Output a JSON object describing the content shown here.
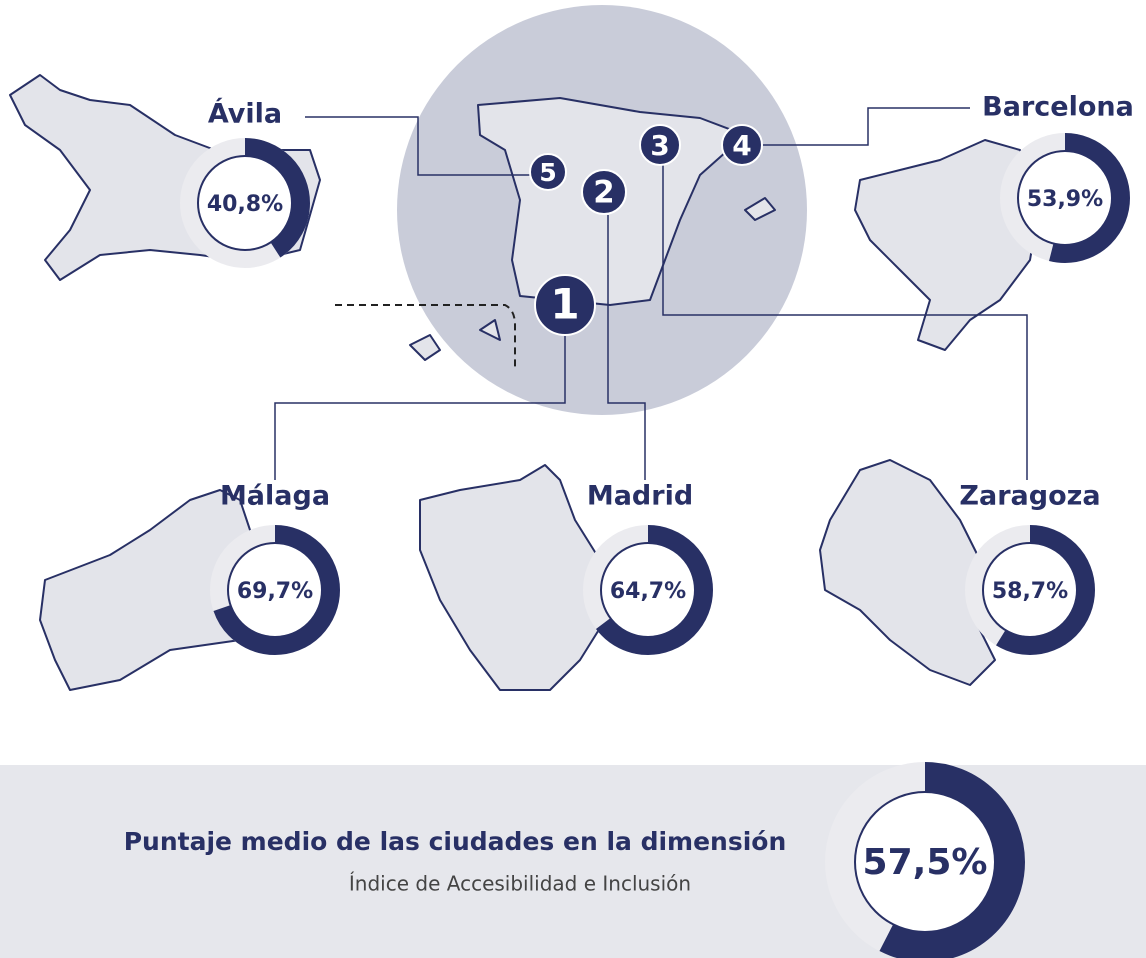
{
  "cities": [
    {
      "name": "Ávila",
      "rank": 5,
      "value": 40.8,
      "label": "40,8%"
    },
    {
      "name": "Barcelona",
      "rank": 4,
      "value": 53.9,
      "label": "53,9%"
    },
    {
      "name": "Málaga",
      "rank": 1,
      "value": 69.7,
      "label": "69,7%"
    },
    {
      "name": "Madrid",
      "rank": 2,
      "value": 64.7,
      "label": "64,7%"
    },
    {
      "name": "Zaragoza",
      "rank": 3,
      "value": 58.7,
      "label": "58,7%"
    }
  ],
  "summary": {
    "title": "Puntaje medio de las ciudades en la dimensión",
    "subtitle": "Índice de Accesibilidad e Inclusión",
    "value": 57.5,
    "label": "57,5%"
  }
}
